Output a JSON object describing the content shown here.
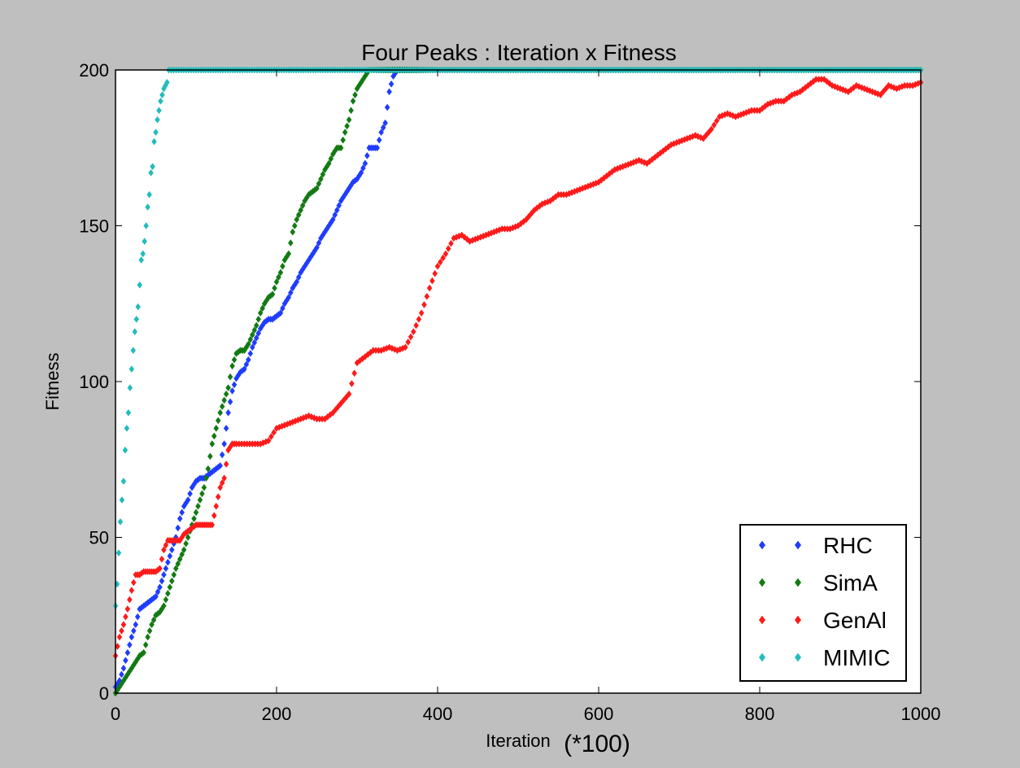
{
  "chart_data": {
    "type": "scatter",
    "title": "Four Peaks : Iteration x Fitness",
    "xlabel": "Iteration",
    "xlabel_suffix": "(*100)",
    "ylabel": "Fitness",
    "xlim": [
      0,
      1000
    ],
    "ylim": [
      0,
      200
    ],
    "xticks": [
      "0",
      "200",
      "400",
      "600",
      "800",
      "1000"
    ],
    "yticks": [
      "0",
      "50",
      "100",
      "150",
      "200"
    ],
    "grid": false,
    "legend_position": "lower-right",
    "series": [
      {
        "name": "RHC",
        "color": "#1f3cff",
        "points": [
          [
            0,
            2
          ],
          [
            5,
            4
          ],
          [
            10,
            8
          ],
          [
            15,
            13
          ],
          [
            20,
            18
          ],
          [
            25,
            22
          ],
          [
            30,
            27
          ],
          [
            35,
            28
          ],
          [
            40,
            29
          ],
          [
            45,
            30
          ],
          [
            50,
            31
          ],
          [
            55,
            34
          ],
          [
            60,
            38
          ],
          [
            65,
            42
          ],
          [
            70,
            46
          ],
          [
            75,
            50
          ],
          [
            80,
            56
          ],
          [
            85,
            60
          ],
          [
            90,
            62
          ],
          [
            95,
            66
          ],
          [
            100,
            68
          ],
          [
            105,
            69
          ],
          [
            110,
            69
          ],
          [
            115,
            70
          ],
          [
            120,
            71
          ],
          [
            125,
            72
          ],
          [
            130,
            73
          ],
          [
            135,
            80
          ],
          [
            140,
            90
          ],
          [
            145,
            97
          ],
          [
            150,
            101
          ],
          [
            155,
            103
          ],
          [
            160,
            104
          ],
          [
            165,
            107
          ],
          [
            170,
            111
          ],
          [
            175,
            114
          ],
          [
            180,
            117
          ],
          [
            185,
            119
          ],
          [
            190,
            120
          ],
          [
            195,
            120
          ],
          [
            200,
            121
          ],
          [
            205,
            122
          ],
          [
            210,
            125
          ],
          [
            215,
            127
          ],
          [
            220,
            130
          ],
          [
            225,
            132
          ],
          [
            230,
            135
          ],
          [
            235,
            137
          ],
          [
            240,
            139
          ],
          [
            245,
            141
          ],
          [
            250,
            143
          ],
          [
            255,
            146
          ],
          [
            260,
            148
          ],
          [
            265,
            150
          ],
          [
            270,
            152
          ],
          [
            275,
            155
          ],
          [
            280,
            158
          ],
          [
            285,
            160
          ],
          [
            290,
            162
          ],
          [
            295,
            164
          ],
          [
            300,
            165
          ],
          [
            305,
            167
          ],
          [
            310,
            170
          ],
          [
            315,
            175
          ],
          [
            320,
            175
          ],
          [
            325,
            175
          ],
          [
            330,
            180
          ],
          [
            335,
            183
          ],
          [
            340,
            193
          ],
          [
            345,
            198
          ],
          [
            350,
            200
          ],
          [
            400,
            200
          ],
          [
            500,
            200
          ],
          [
            600,
            200
          ],
          [
            700,
            200
          ],
          [
            800,
            200
          ],
          [
            900,
            200
          ],
          [
            1000,
            200
          ]
        ]
      },
      {
        "name": "SimA",
        "color": "#137a13",
        "points": [
          [
            0,
            0
          ],
          [
            5,
            2
          ],
          [
            10,
            4
          ],
          [
            15,
            6
          ],
          [
            20,
            8
          ],
          [
            25,
            10
          ],
          [
            30,
            12
          ],
          [
            35,
            13
          ],
          [
            40,
            18
          ],
          [
            45,
            22
          ],
          [
            50,
            25
          ],
          [
            55,
            26
          ],
          [
            60,
            28
          ],
          [
            65,
            32
          ],
          [
            70,
            36
          ],
          [
            75,
            40
          ],
          [
            80,
            43
          ],
          [
            85,
            46
          ],
          [
            90,
            50
          ],
          [
            95,
            54
          ],
          [
            100,
            58
          ],
          [
            105,
            62
          ],
          [
            110,
            66
          ],
          [
            115,
            72
          ],
          [
            120,
            80
          ],
          [
            125,
            85
          ],
          [
            130,
            90
          ],
          [
            135,
            94
          ],
          [
            140,
            98
          ],
          [
            145,
            105
          ],
          [
            150,
            109
          ],
          [
            155,
            110
          ],
          [
            160,
            110
          ],
          [
            165,
            112
          ],
          [
            170,
            115
          ],
          [
            175,
            118
          ],
          [
            180,
            122
          ],
          [
            185,
            125
          ],
          [
            190,
            127
          ],
          [
            195,
            128
          ],
          [
            200,
            132
          ],
          [
            205,
            135
          ],
          [
            210,
            139
          ],
          [
            215,
            141
          ],
          [
            220,
            148
          ],
          [
            225,
            152
          ],
          [
            230,
            155
          ],
          [
            235,
            158
          ],
          [
            240,
            160
          ],
          [
            245,
            161
          ],
          [
            250,
            162
          ],
          [
            255,
            165
          ],
          [
            260,
            168
          ],
          [
            265,
            170
          ],
          [
            270,
            173
          ],
          [
            275,
            175
          ],
          [
            280,
            175
          ],
          [
            285,
            180
          ],
          [
            290,
            184
          ],
          [
            295,
            190
          ],
          [
            300,
            194
          ],
          [
            305,
            196
          ],
          [
            310,
            198
          ],
          [
            315,
            200
          ],
          [
            350,
            200
          ],
          [
            400,
            200
          ],
          [
            500,
            200
          ],
          [
            600,
            200
          ],
          [
            700,
            200
          ],
          [
            800,
            200
          ],
          [
            900,
            200
          ],
          [
            1000,
            200
          ]
        ]
      },
      {
        "name": "GenAl",
        "color": "#ff1a1a",
        "points": [
          [
            0,
            12
          ],
          [
            5,
            18
          ],
          [
            10,
            22
          ],
          [
            15,
            27
          ],
          [
            20,
            33
          ],
          [
            25,
            38
          ],
          [
            30,
            38
          ],
          [
            35,
            39
          ],
          [
            40,
            39
          ],
          [
            45,
            39
          ],
          [
            50,
            39
          ],
          [
            55,
            40
          ],
          [
            60,
            46
          ],
          [
            65,
            49
          ],
          [
            70,
            49
          ],
          [
            75,
            49
          ],
          [
            80,
            49
          ],
          [
            85,
            51
          ],
          [
            90,
            52
          ],
          [
            95,
            53
          ],
          [
            100,
            54
          ],
          [
            105,
            54
          ],
          [
            110,
            54
          ],
          [
            115,
            54
          ],
          [
            120,
            54
          ],
          [
            125,
            60
          ],
          [
            130,
            66
          ],
          [
            135,
            69
          ],
          [
            140,
            78
          ],
          [
            145,
            80
          ],
          [
            150,
            80
          ],
          [
            160,
            80
          ],
          [
            170,
            80
          ],
          [
            180,
            80
          ],
          [
            190,
            81
          ],
          [
            200,
            85
          ],
          [
            210,
            86
          ],
          [
            220,
            87
          ],
          [
            230,
            88
          ],
          [
            240,
            89
          ],
          [
            250,
            88
          ],
          [
            260,
            88
          ],
          [
            270,
            90
          ],
          [
            280,
            93
          ],
          [
            290,
            96
          ],
          [
            300,
            106
          ],
          [
            310,
            108
          ],
          [
            320,
            110
          ],
          [
            330,
            110
          ],
          [
            340,
            111
          ],
          [
            350,
            110
          ],
          [
            360,
            111
          ],
          [
            370,
            116
          ],
          [
            380,
            122
          ],
          [
            390,
            130
          ],
          [
            400,
            137
          ],
          [
            410,
            141
          ],
          [
            420,
            146
          ],
          [
            430,
            147
          ],
          [
            440,
            145
          ],
          [
            450,
            146
          ],
          [
            460,
            147
          ],
          [
            470,
            148
          ],
          [
            480,
            149
          ],
          [
            490,
            149
          ],
          [
            500,
            150
          ],
          [
            510,
            152
          ],
          [
            520,
            155
          ],
          [
            530,
            157
          ],
          [
            540,
            158
          ],
          [
            550,
            160
          ],
          [
            560,
            160
          ],
          [
            570,
            161
          ],
          [
            580,
            162
          ],
          [
            590,
            163
          ],
          [
            600,
            164
          ],
          [
            610,
            166
          ],
          [
            620,
            168
          ],
          [
            630,
            169
          ],
          [
            640,
            170
          ],
          [
            650,
            171
          ],
          [
            660,
            170
          ],
          [
            670,
            172
          ],
          [
            680,
            174
          ],
          [
            690,
            176
          ],
          [
            700,
            177
          ],
          [
            710,
            178
          ],
          [
            720,
            179
          ],
          [
            730,
            178
          ],
          [
            740,
            181
          ],
          [
            750,
            185
          ],
          [
            760,
            186
          ],
          [
            770,
            185
          ],
          [
            780,
            186
          ],
          [
            790,
            187
          ],
          [
            800,
            187
          ],
          [
            810,
            189
          ],
          [
            820,
            190
          ],
          [
            830,
            190
          ],
          [
            840,
            192
          ],
          [
            850,
            193
          ],
          [
            860,
            195
          ],
          [
            870,
            197
          ],
          [
            880,
            197
          ],
          [
            890,
            195
          ],
          [
            900,
            194
          ],
          [
            910,
            193
          ],
          [
            920,
            195
          ],
          [
            930,
            194
          ],
          [
            940,
            193
          ],
          [
            950,
            192
          ],
          [
            960,
            195
          ],
          [
            970,
            194
          ],
          [
            980,
            195
          ],
          [
            990,
            195
          ],
          [
            1000,
            196
          ]
        ]
      },
      {
        "name": "MIMIC",
        "color": "#22bcbc",
        "points": [
          [
            0,
            28
          ],
          [
            2,
            35
          ],
          [
            4,
            45
          ],
          [
            6,
            55
          ],
          [
            8,
            62
          ],
          [
            10,
            68
          ],
          [
            12,
            78
          ],
          [
            14,
            85
          ],
          [
            16,
            90
          ],
          [
            18,
            98
          ],
          [
            20,
            104
          ],
          [
            22,
            110
          ],
          [
            24,
            116
          ],
          [
            26,
            120
          ],
          [
            28,
            124
          ],
          [
            30,
            131
          ],
          [
            32,
            139
          ],
          [
            34,
            141
          ],
          [
            36,
            145
          ],
          [
            38,
            150
          ],
          [
            40,
            156
          ],
          [
            42,
            160
          ],
          [
            44,
            167
          ],
          [
            46,
            169
          ],
          [
            48,
            177
          ],
          [
            50,
            180
          ],
          [
            52,
            184
          ],
          [
            54,
            187
          ],
          [
            56,
            190
          ],
          [
            58,
            192
          ],
          [
            60,
            194
          ],
          [
            62,
            195
          ],
          [
            64,
            196
          ],
          [
            66,
            200
          ],
          [
            100,
            200
          ],
          [
            200,
            200
          ],
          [
            300,
            200
          ],
          [
            400,
            200
          ],
          [
            500,
            200
          ],
          [
            600,
            200
          ],
          [
            700,
            200
          ],
          [
            800,
            200
          ],
          [
            900,
            200
          ],
          [
            1000,
            200
          ]
        ]
      }
    ]
  }
}
